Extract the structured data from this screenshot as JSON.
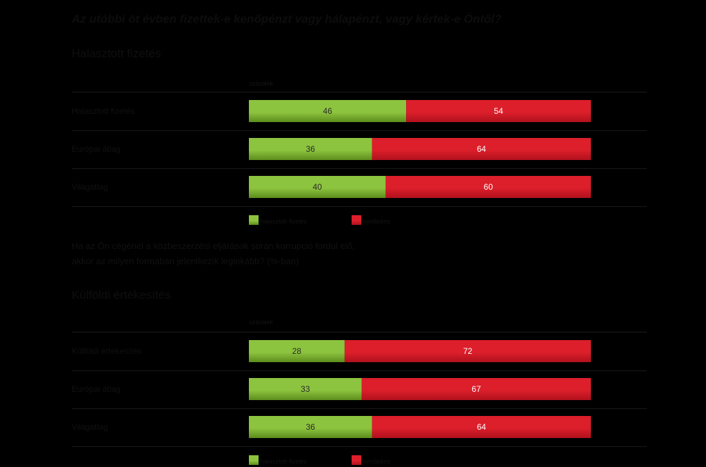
{
  "title": "Az utóbbi öt évben fizettek-e kenőpénzt vagy hálapénzt, vagy kértek-e Öntől?",
  "colors": {
    "green": "#8dc43f",
    "green_dark": "#5c8d1c",
    "red": "#dc1f2b",
    "red_dark": "#b0111c",
    "grid": "#1a1a1a"
  },
  "legend": {
    "green_label": "halasztott fizetés",
    "red_label": "kenőpénz"
  },
  "note_lines": [
    "Ha az Ön cégénél a közbeszerzési eljárások során korrupció fordul elő,",
    "akkor az milyen formában jelentkezik leginkább? (%-ban)"
  ],
  "chart_data": [
    {
      "type": "bar",
      "orientation": "horizontal",
      "stacked": true,
      "percent": true,
      "title": "Halasztott fizetés",
      "unit_label": "százalék",
      "categories": [
        "Halasztott fizetés",
        "Európai átlag",
        "Világátlag"
      ],
      "series": [
        {
          "name": "halasztott fizetés",
          "color": "green",
          "values": [
            46,
            36,
            40
          ]
        },
        {
          "name": "kenőpénz",
          "color": "red",
          "values": [
            54,
            64,
            60
          ]
        }
      ],
      "xlim": [
        0,
        100
      ],
      "legend_position": "bottom"
    },
    {
      "type": "bar",
      "orientation": "horizontal",
      "stacked": true,
      "percent": true,
      "title": "Külföldi értékesítés",
      "unit_label": "százalék",
      "categories": [
        "Külföldi értékesítés",
        "Európai átlag",
        "Világátlag"
      ],
      "series": [
        {
          "name": "halasztott fizetés",
          "color": "green",
          "values": [
            28,
            33,
            36
          ]
        },
        {
          "name": "kenőpénz",
          "color": "red",
          "values": [
            72,
            67,
            64
          ]
        }
      ],
      "xlim": [
        0,
        100
      ],
      "legend_position": "bottom"
    }
  ]
}
